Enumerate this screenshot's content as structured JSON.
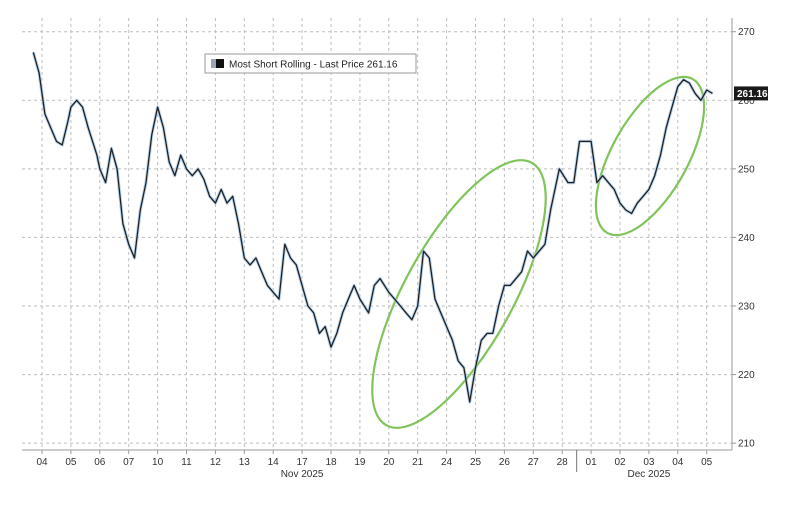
{
  "chart_data": {
    "type": "line",
    "title": "",
    "xlabel": "",
    "ylabel": "",
    "legend": {
      "label": "Most Short Rolling - Last Price 261.16",
      "placement": "top-left"
    },
    "last_price_label": "261.16",
    "ylim": [
      209,
      272
    ],
    "y_ticks": [
      210,
      220,
      230,
      240,
      250,
      260,
      270
    ],
    "grid": true,
    "x_tick_labels": [
      "04",
      "05",
      "06",
      "07",
      "10",
      "11",
      "12",
      "13",
      "14",
      "17",
      "18",
      "19",
      "20",
      "21",
      "24",
      "25",
      "26",
      "27",
      "28",
      "01",
      "02",
      "03",
      "04",
      "05"
    ],
    "x_group_labels": [
      {
        "label": "Nov 2025",
        "from": 0,
        "to": 18
      },
      {
        "label": "Dec 2025",
        "from": 19,
        "to": 23
      }
    ],
    "series": [
      {
        "x": [
          -0.3,
          -0.1,
          0.0,
          0.1,
          0.3,
          0.5,
          0.7,
          0.9,
          1.0,
          1.2,
          1.4,
          1.6,
          1.9,
          2.0,
          2.2,
          2.4,
          2.6,
          2.8,
          3.0,
          3.2,
          3.4,
          3.6,
          3.8,
          4.0,
          4.2,
          4.4,
          4.6,
          4.8,
          5.0,
          5.2,
          5.4,
          5.6,
          5.8,
          6.0,
          6.2,
          6.4,
          6.6,
          6.8,
          7.0,
          7.2,
          7.4,
          7.6,
          7.8,
          8.0,
          8.2,
          8.4,
          8.6,
          8.8,
          9.0,
          9.2,
          9.4,
          9.6,
          9.8,
          10.0,
          10.2,
          10.4,
          10.6,
          10.8,
          11.0,
          11.3,
          11.5,
          11.7,
          12.0,
          12.2,
          12.4,
          12.6,
          12.8,
          13.0,
          13.2,
          13.4,
          13.6,
          13.8,
          14.0,
          14.2,
          14.4,
          14.6,
          14.8,
          15.0,
          15.2,
          15.4,
          15.6,
          15.8,
          16.0,
          16.2,
          16.4,
          16.6,
          16.8,
          17.0,
          17.4,
          17.6,
          17.8,
          17.9,
          18.2,
          18.4,
          18.6,
          18.8,
          19.0,
          19.2,
          19.4,
          19.6,
          19.8,
          20.0,
          20.2,
          20.4,
          20.6,
          20.8,
          21.0,
          21.2,
          21.4,
          21.6,
          21.8,
          22.0,
          22.2,
          22.4,
          22.6,
          22.8,
          23.0,
          23.2
        ],
        "y": [
          267,
          264,
          261,
          258,
          256,
          254,
          253.5,
          257,
          259,
          260,
          259,
          256,
          252,
          250,
          248,
          253,
          250,
          242,
          239,
          237,
          244,
          248,
          255,
          259,
          256,
          251,
          249,
          252,
          250,
          249,
          250,
          248.5,
          246,
          245,
          247,
          245,
          246,
          242,
          237,
          236,
          237,
          235,
          233,
          232,
          231,
          239,
          237,
          236,
          233,
          230,
          229,
          226,
          227,
          224,
          226,
          229,
          231,
          233,
          231,
          229,
          233,
          234,
          232,
          231,
          230,
          229,
          228,
          230,
          238,
          237,
          231,
          229,
          227,
          225,
          222,
          221,
          216,
          221,
          225,
          226,
          226,
          230,
          233,
          233,
          234,
          235,
          238,
          237,
          239,
          244,
          248,
          250,
          248,
          248,
          254,
          254,
          254,
          248,
          249,
          248,
          247,
          245,
          244,
          243.5,
          245,
          246,
          247,
          249,
          252,
          256,
          259,
          262,
          263,
          262.5,
          261,
          260,
          261.5,
          261
        ]
      }
    ]
  }
}
